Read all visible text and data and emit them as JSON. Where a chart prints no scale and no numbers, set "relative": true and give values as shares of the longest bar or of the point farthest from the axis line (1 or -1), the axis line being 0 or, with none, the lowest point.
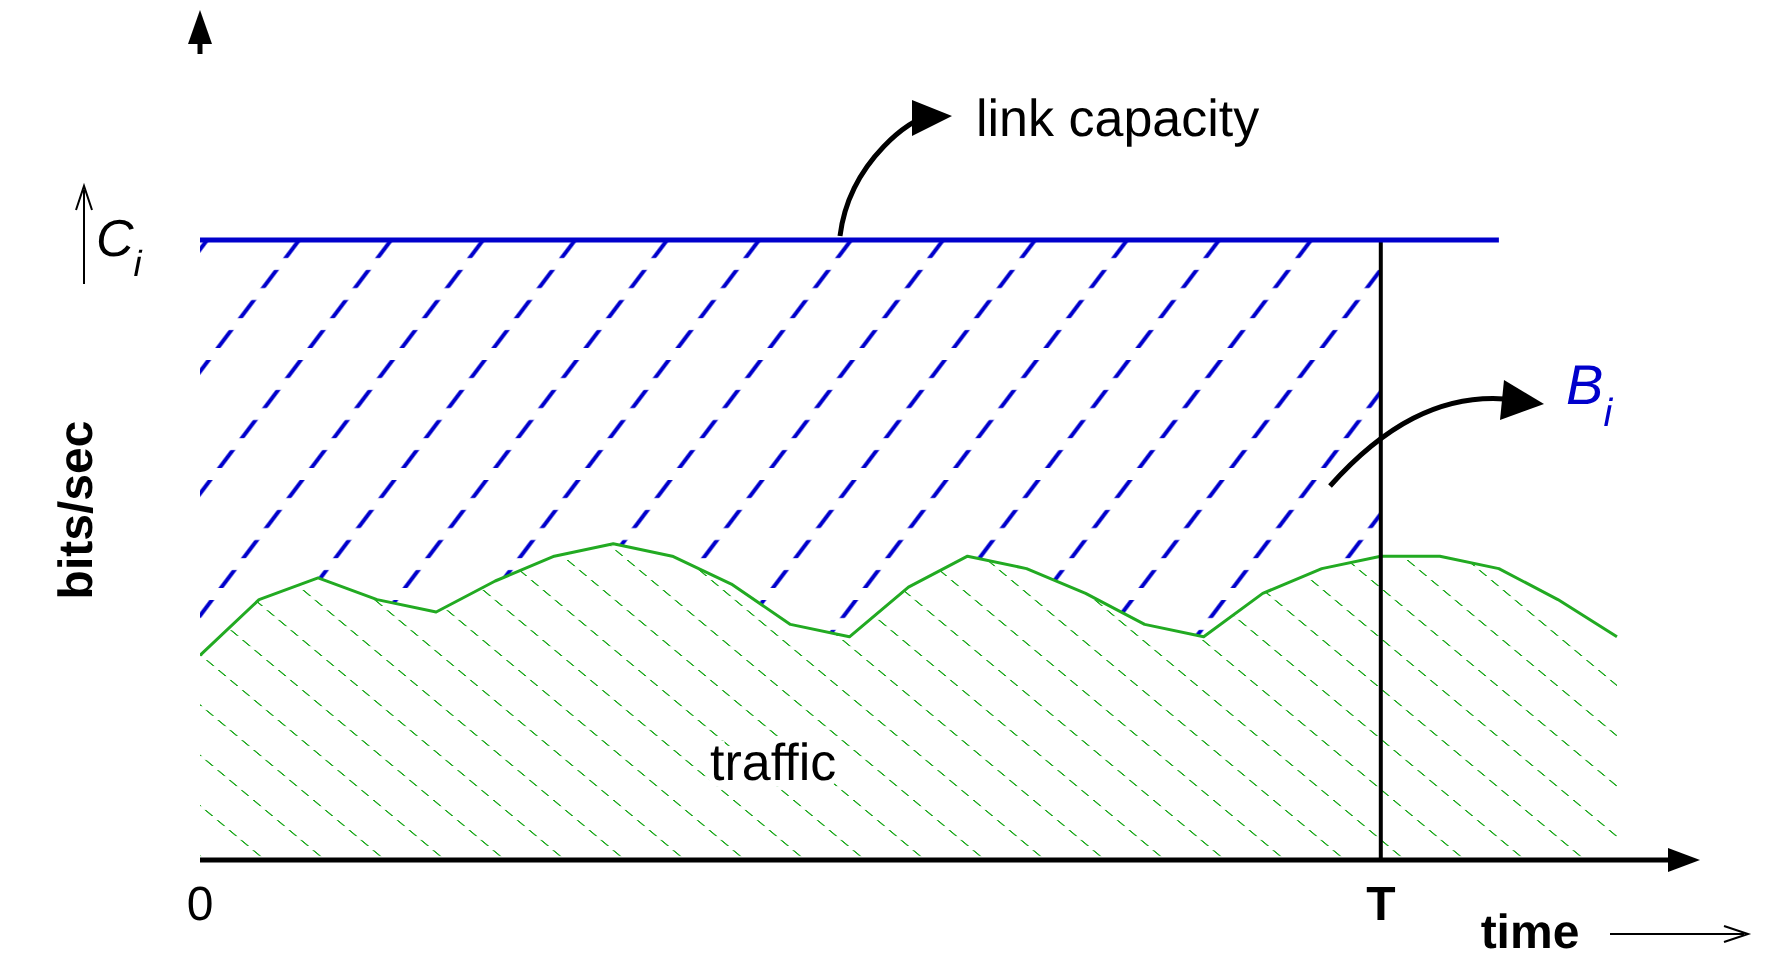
{
  "chart_data": {
    "type": "line",
    "relative": true,
    "xlabel": "time",
    "ylabel": "bits/sec",
    "marker": "none",
    "line_style": "solid",
    "categories": [
      "0",
      null,
      null,
      null,
      null,
      null,
      null,
      null,
      null,
      null,
      null,
      null,
      null,
      null,
      null,
      null,
      null,
      null,
      null,
      null,
      "T",
      null,
      null,
      null,
      null
    ],
    "series": [
      {
        "name": "link capacity",
        "color": "#0000cc",
        "values": [
          1,
          1,
          1,
          1,
          1,
          1,
          1,
          1,
          1,
          1,
          1,
          1,
          1,
          1,
          1,
          1,
          1,
          1,
          1,
          1,
          1,
          1,
          1,
          null,
          null
        ]
      },
      {
        "name": "traffic",
        "type": "area",
        "color": "#22aa22",
        "values": [
          0.33,
          0.42,
          0.455,
          0.42,
          0.4,
          0.45,
          0.49,
          0.51,
          0.49,
          0.445,
          0.38,
          0.36,
          0.44,
          0.49,
          0.47,
          0.43,
          0.38,
          0.36,
          0.43,
          0.47,
          0.49,
          0.49,
          0.47,
          0.42,
          0.36
        ]
      }
    ],
    "ref_lines": [
      {
        "axis": "x",
        "value": "T",
        "color": "#000000"
      }
    ],
    "bands": [
      {
        "axis": "x",
        "from": "0",
        "to": "T",
        "label": "B$_{i}$",
        "color": "#0000cc"
      }
    ],
    "annotations": [
      {
        "text": "C$_{i}$",
        "x": "0",
        "y": 1
      }
    ]
  }
}
